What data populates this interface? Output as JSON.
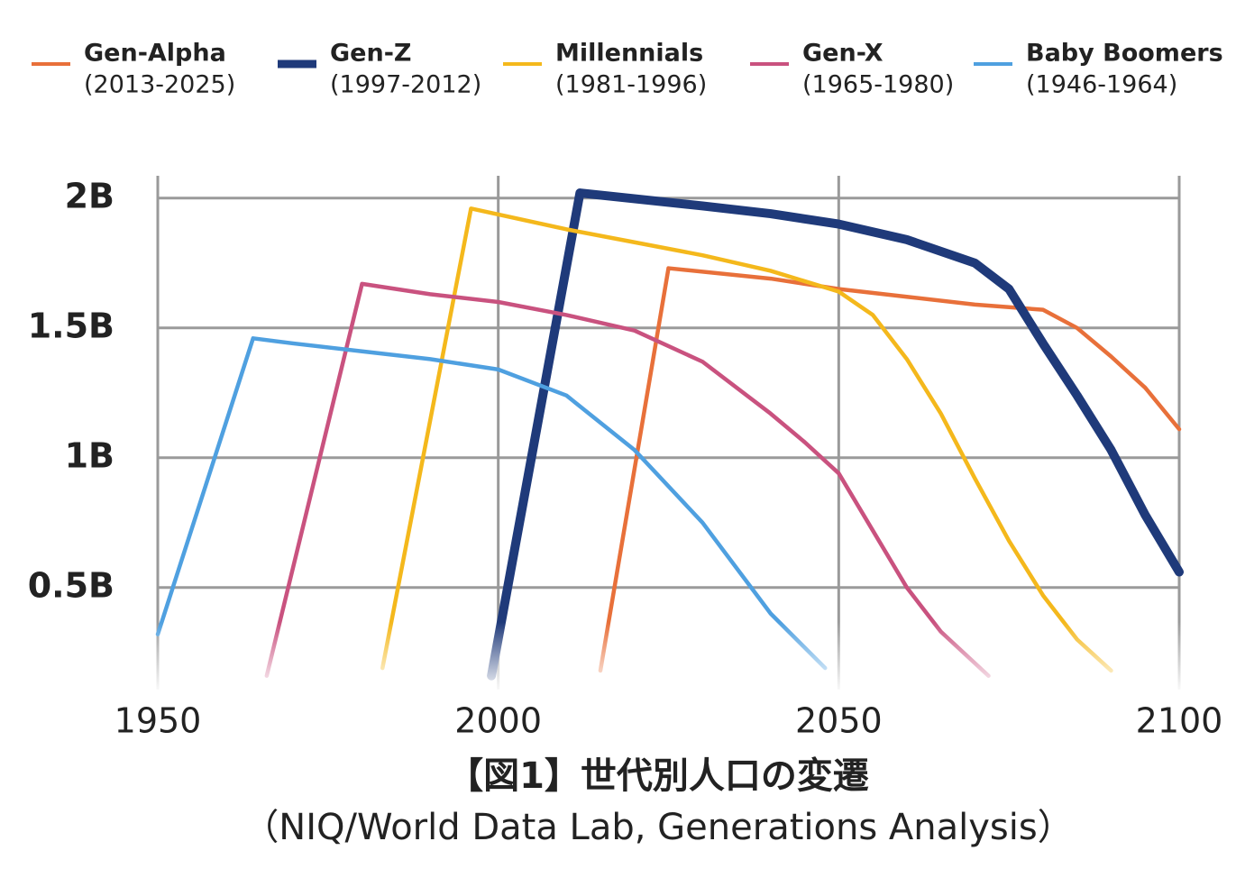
{
  "chart_data": {
    "type": "line",
    "title": "【図1】世代別人口の変遷",
    "subtitle": "（NIQ/World Data Lab, Generations Analysis）",
    "xlim": [
      1950,
      2100
    ],
    "xticks": [
      1950,
      2000,
      2050,
      2100
    ],
    "ylim": [
      0.1,
      2.1
    ],
    "yticks": [
      {
        "value": 0.5,
        "label": "0.5B"
      },
      {
        "value": 1,
        "label": "1B"
      },
      {
        "value": 1.5,
        "label": "1.5B"
      },
      {
        "value": 2,
        "label": "2B"
      }
    ],
    "grid": true,
    "series": [
      {
        "name": "Gen-Alpha",
        "years": "(2013-2025)",
        "color": "#e8703a",
        "x": [
          2015,
          2025,
          2040,
          2050,
          2060,
          2070,
          2080,
          2085,
          2090,
          2095,
          2100
        ],
        "values": [
          0.18,
          1.73,
          1.69,
          1.65,
          1.62,
          1.59,
          1.57,
          1.5,
          1.39,
          1.27,
          1.11
        ]
      },
      {
        "name": "Gen-Z",
        "years": "(1997-2012)",
        "color": "#1f3a7a",
        "x": [
          1999,
          2012,
          2030,
          2040,
          2050,
          2060,
          2070,
          2075,
          2080,
          2085,
          2090,
          2095,
          2100
        ],
        "values": [
          0.16,
          2.02,
          1.97,
          1.94,
          1.9,
          1.84,
          1.75,
          1.65,
          1.44,
          1.24,
          1.03,
          0.78,
          0.56
        ]
      },
      {
        "name": "Millennials",
        "years": "(1981-1996)",
        "color": "#f4b81c",
        "x": [
          1983,
          1996,
          2010,
          2020,
          2030,
          2040,
          2050,
          2055,
          2060,
          2065,
          2070,
          2075,
          2080,
          2085,
          2090
        ],
        "values": [
          0.19,
          1.96,
          1.88,
          1.83,
          1.78,
          1.72,
          1.64,
          1.55,
          1.38,
          1.17,
          0.92,
          0.68,
          0.47,
          0.3,
          0.18
        ]
      },
      {
        "name": "Gen-X",
        "years": "(1965-1980)",
        "color": "#c9527f",
        "x": [
          1966,
          1980,
          1990,
          2000,
          2010,
          2020,
          2030,
          2040,
          2045,
          2050,
          2055,
          2060,
          2065,
          2072
        ],
        "values": [
          0.16,
          1.67,
          1.63,
          1.6,
          1.55,
          1.49,
          1.37,
          1.17,
          1.06,
          0.94,
          0.72,
          0.5,
          0.33,
          0.16
        ]
      },
      {
        "name": "Baby Boomers",
        "years": "(1946-1964)",
        "color": "#4fa0e0",
        "x": [
          1950,
          1964,
          1970,
          1980,
          1990,
          2000,
          2010,
          2020,
          2030,
          2040,
          2048
        ],
        "values": [
          0.32,
          1.46,
          1.44,
          1.41,
          1.38,
          1.34,
          1.24,
          1.03,
          0.75,
          0.4,
          0.19
        ]
      }
    ]
  }
}
